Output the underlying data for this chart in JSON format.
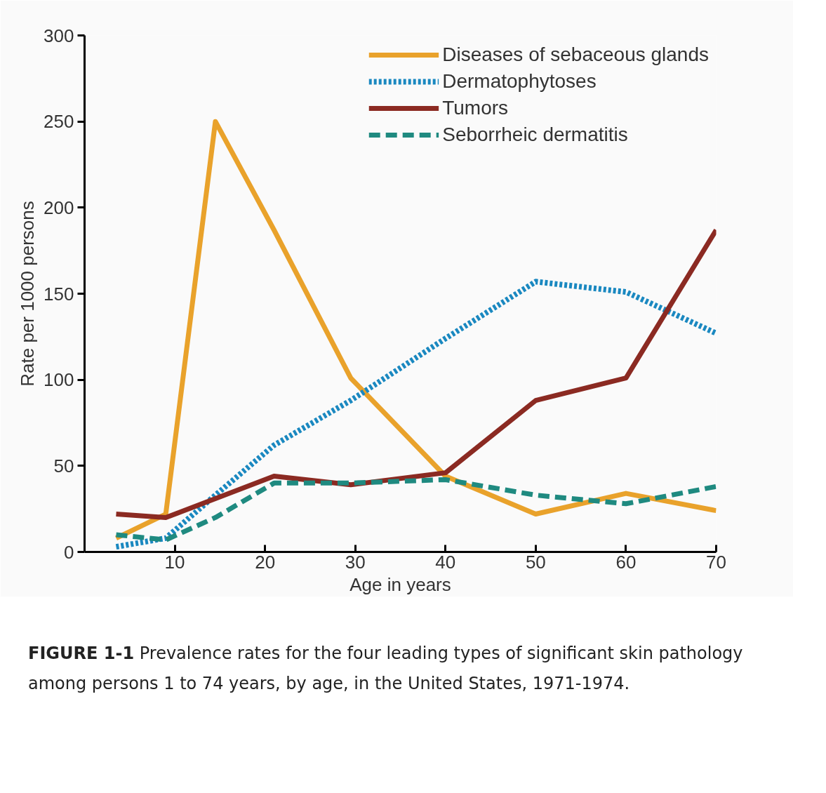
{
  "chart_data": {
    "type": "line",
    "xlabel": "Age in years",
    "ylabel": "Rate per 1000 persons",
    "x": [
      3.5,
      9,
      14.5,
      21,
      29.5,
      40,
      50,
      60,
      70
    ],
    "series": [
      {
        "name": "Diseases of sebaceous glands",
        "color": "#e9a22b",
        "line_style": "solid",
        "values": [
          8,
          22,
          250,
          187,
          101,
          44,
          22,
          34,
          24
        ]
      },
      {
        "name": "Dermatophytoses",
        "color": "#1a88c0",
        "line_style": "dotted",
        "values": [
          3,
          8,
          33,
          62,
          88,
          124,
          157,
          151,
          127
        ]
      },
      {
        "name": "Tumors",
        "color": "#8b2a22",
        "line_style": "solid",
        "values": [
          22,
          20,
          31,
          44,
          39,
          46,
          88,
          101,
          187
        ]
      },
      {
        "name": "Seborrheic dermatitis",
        "color": "#1f8a80",
        "line_style": "dashed",
        "values": [
          10,
          7,
          20,
          40,
          40,
          42,
          33,
          28,
          38
        ]
      }
    ],
    "xlim": [
      0,
      70
    ],
    "ylim": [
      0,
      300
    ],
    "xticks": [
      10,
      20,
      30,
      40,
      50,
      60,
      70
    ],
    "yticks": [
      0,
      50,
      100,
      150,
      200,
      250,
      300
    ],
    "grid": false,
    "legend": "top right",
    "marker": "none",
    "annotations": [
      "FIGURE 1-1",
      "Prevalence rates for the four leading types of significant skin pathology among persons 1 to 74 years, by age, in the United States, 1971-1974."
    ]
  }
}
